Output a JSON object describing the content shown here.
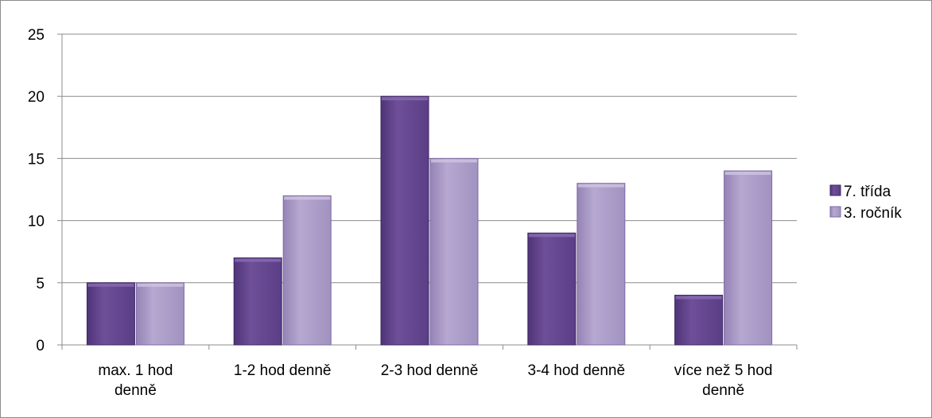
{
  "chart_data": {
    "type": "bar",
    "categories": [
      [
        "max. 1 hod",
        "denně"
      ],
      [
        "1-2 hod denně"
      ],
      [
        "2-3 hod denně"
      ],
      [
        "3-4 hod denně"
      ],
      [
        "více než 5 hod",
        "denně"
      ]
    ],
    "series": [
      {
        "name": "7. třída",
        "values": [
          5,
          7,
          20,
          9,
          4
        ],
        "color": "#6a4a93"
      },
      {
        "name": "3. ročník",
        "values": [
          5,
          12,
          15,
          13,
          14
        ],
        "color": "#a897c4"
      }
    ],
    "ylim": [
      0,
      25
    ],
    "yticks": [
      0,
      5,
      10,
      15,
      20,
      25
    ],
    "grid": true,
    "legend_position": "right",
    "title": "",
    "xlabel": "",
    "ylabel": ""
  }
}
